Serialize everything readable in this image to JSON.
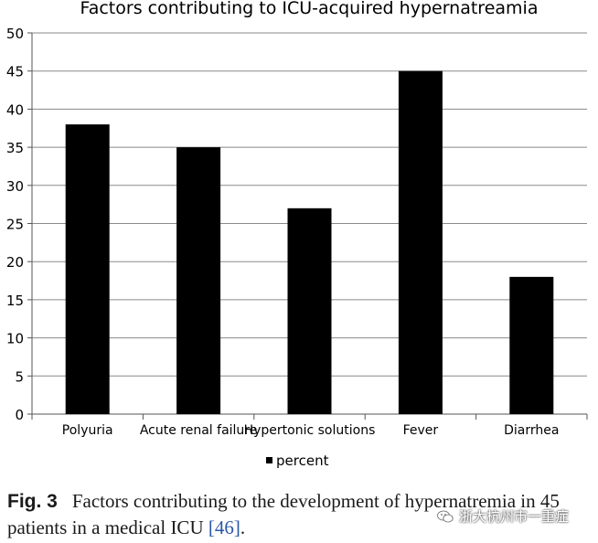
{
  "chart_data": {
    "type": "bar",
    "title": "Factors contributing to ICU-acquired hypernatreamia",
    "categories": [
      "Polyuria",
      "Acute renal failure",
      "Hypertonic solutions",
      "Fever",
      "Diarrhea"
    ],
    "series": [
      {
        "name": "percent",
        "values": [
          38,
          35,
          27,
          45,
          18
        ]
      }
    ],
    "ylim": [
      0,
      50
    ],
    "yticks": [
      0,
      5,
      10,
      15,
      20,
      25,
      30,
      35,
      40,
      45,
      50
    ],
    "grid": true,
    "legend": "bottom-center",
    "bar_color": "#000000"
  },
  "caption": {
    "label": "Fig. 3",
    "text": "Factors contributing to the development of hypernatremia in 45 patients in a medical ICU ",
    "ref": "[46]",
    "end": "."
  },
  "watermark": {
    "text": "浙大杭州市一重症",
    "icon": "wechat-icon"
  }
}
